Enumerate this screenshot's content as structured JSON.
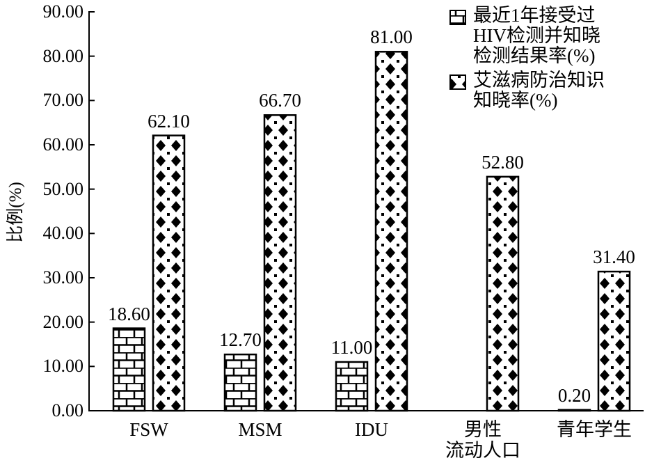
{
  "chart_data": {
    "type": "bar",
    "y_label": "比例(%)",
    "categories": [
      "FSW",
      "MSM",
      "IDU",
      "男性\n流动人口",
      "青年学生"
    ],
    "series": [
      {
        "name": "最近1年接受过\nHIV检测并知晓\n检测结果率(%)",
        "color": "#000000",
        "values": [
          18.6,
          12.7,
          11.0,
          null,
          0.2
        ],
        "value_labels": [
          "18.60",
          "12.70",
          "11.00",
          null,
          "0.20"
        ]
      },
      {
        "name": "艾滋病防治知识\n知晓率(%)",
        "color": "#000000",
        "values": [
          62.1,
          66.7,
          81.0,
          52.8,
          31.4
        ],
        "value_labels": [
          "62.10",
          "66.70",
          "81.00",
          "52.80",
          "31.40"
        ]
      }
    ],
    "ylim": [
      0,
      90
    ],
    "yticks": [
      {
        "value": 0,
        "label": "0.00"
      },
      {
        "value": 10,
        "label": "10.00"
      },
      {
        "value": 20,
        "label": "20.00"
      },
      {
        "value": 30,
        "label": "30.00"
      },
      {
        "value": 40,
        "label": "40.00"
      },
      {
        "value": 50,
        "label": "50.00"
      },
      {
        "value": 60,
        "label": "60.00"
      },
      {
        "value": 70,
        "label": "70.00"
      },
      {
        "value": 80,
        "label": "80.00"
      },
      {
        "value": 90,
        "label": "90.00"
      }
    ],
    "legend": "top-right"
  }
}
